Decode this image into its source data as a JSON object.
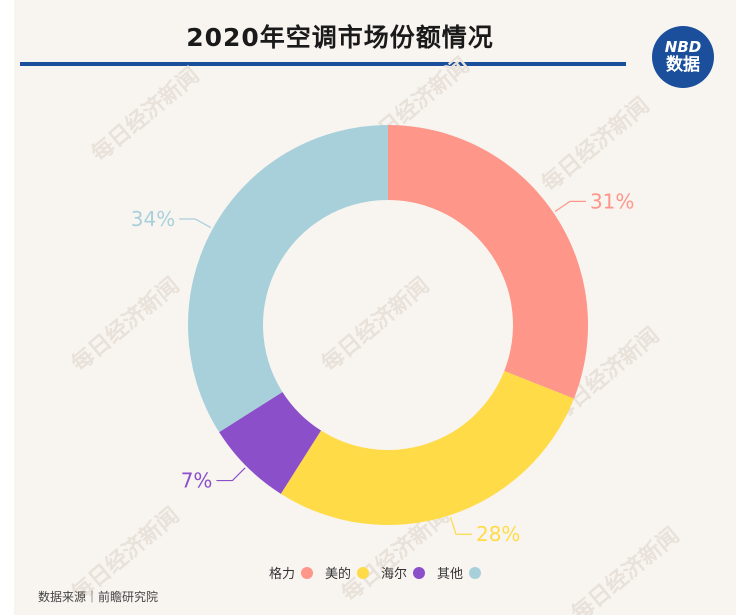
{
  "header": {
    "title": "2020年空调市场份额情况",
    "logo_line1": "NBD",
    "logo_line2": "数据",
    "brand_color": "#1b4f9c"
  },
  "watermark_text": "每日经济新闻",
  "chart_data": {
    "type": "pie",
    "title": "2020年空调市场份额情况",
    "legend_position": "bottom",
    "slices": [
      {
        "name": "格力",
        "value": 31,
        "label": "31%",
        "color": "#fe9689"
      },
      {
        "name": "美的",
        "value": 28,
        "label": "28%",
        "color": "#fedb47"
      },
      {
        "name": "海尔",
        "value": 7,
        "label": "7%",
        "color": "#8b4fca"
      },
      {
        "name": "其他",
        "value": 34,
        "label": "34%",
        "color": "#a8d0db"
      }
    ]
  },
  "footer": {
    "source": "数据来源｜前瞻研究院"
  }
}
